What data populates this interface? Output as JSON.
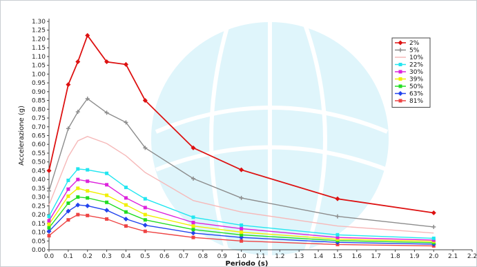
{
  "chart_data": {
    "type": "line",
    "xlabel": "Periodo (s)",
    "ylabel": "Accelerazione (g)",
    "xlim": [
      0,
      2.2
    ],
    "ylim": [
      0,
      1.3
    ],
    "x_ticks": [
      "0.0",
      "0.1",
      "0.2",
      "0.3",
      "0.4",
      "0.5",
      "0.6",
      "0.7",
      "0.8",
      "0.9",
      "1.0",
      "1.1",
      "1.2",
      "1.3",
      "1.4",
      "1.5",
      "1.6",
      "1.7",
      "1.8",
      "1.9",
      "2.0",
      "2.1",
      "2.2"
    ],
    "y_ticks": [
      "0.00",
      "0.05",
      "0.10",
      "0.15",
      "0.20",
      "0.25",
      "0.30",
      "0.35",
      "0.40",
      "0.45",
      "0.50",
      "0.55",
      "0.60",
      "0.65",
      "0.70",
      "0.75",
      "0.80",
      "0.85",
      "0.90",
      "0.95",
      "1.00",
      "1.05",
      "1.10",
      "1.15",
      "1.20",
      "1.25",
      "1.30"
    ],
    "grid": false,
    "legend_position": "top-right",
    "x": [
      0.0,
      0.1,
      0.15,
      0.2,
      0.3,
      0.4,
      0.5,
      0.75,
      1.0,
      1.5,
      2.0
    ],
    "series": [
      {
        "name": "2%",
        "color": "#dd1111",
        "marker": "diamond",
        "values": [
          0.45,
          0.94,
          1.07,
          1.22,
          1.07,
          1.055,
          0.85,
          0.58,
          0.455,
          0.29,
          0.21
        ]
      },
      {
        "name": "5%",
        "color": "#8c8c8c",
        "marker": "plus",
        "values": [
          0.335,
          0.69,
          0.785,
          0.86,
          0.78,
          0.725,
          0.58,
          0.405,
          0.295,
          0.19,
          0.13
        ]
      },
      {
        "name": "10%",
        "color": "#f6b9b9",
        "marker": "none",
        "values": [
          0.255,
          0.53,
          0.62,
          0.645,
          0.605,
          0.535,
          0.44,
          0.28,
          0.215,
          0.135,
          0.095
        ]
      },
      {
        "name": "22%",
        "color": "#22e6f0",
        "marker": "square",
        "values": [
          0.19,
          0.395,
          0.46,
          0.455,
          0.435,
          0.355,
          0.29,
          0.185,
          0.14,
          0.085,
          0.065
        ]
      },
      {
        "name": "30%",
        "color": "#dd22dd",
        "marker": "square",
        "values": [
          0.165,
          0.345,
          0.4,
          0.39,
          0.37,
          0.295,
          0.24,
          0.155,
          0.12,
          0.07,
          0.055
        ]
      },
      {
        "name": "39%",
        "color": "#f0f000",
        "marker": "square",
        "values": [
          0.145,
          0.305,
          0.35,
          0.335,
          0.31,
          0.255,
          0.2,
          0.135,
          0.1,
          0.06,
          0.048
        ]
      },
      {
        "name": "50%",
        "color": "#22dd22",
        "marker": "square",
        "values": [
          0.125,
          0.265,
          0.3,
          0.295,
          0.27,
          0.215,
          0.17,
          0.115,
          0.085,
          0.052,
          0.04
        ]
      },
      {
        "name": "63%",
        "color": "#2244ee",
        "marker": "diamond",
        "values": [
          0.105,
          0.22,
          0.255,
          0.25,
          0.225,
          0.175,
          0.14,
          0.095,
          0.07,
          0.042,
          0.032
        ]
      },
      {
        "name": "81%",
        "color": "#ee4444",
        "marker": "square",
        "values": [
          0.08,
          0.17,
          0.2,
          0.195,
          0.175,
          0.135,
          0.105,
          0.07,
          0.05,
          0.03,
          0.022
        ]
      }
    ]
  }
}
